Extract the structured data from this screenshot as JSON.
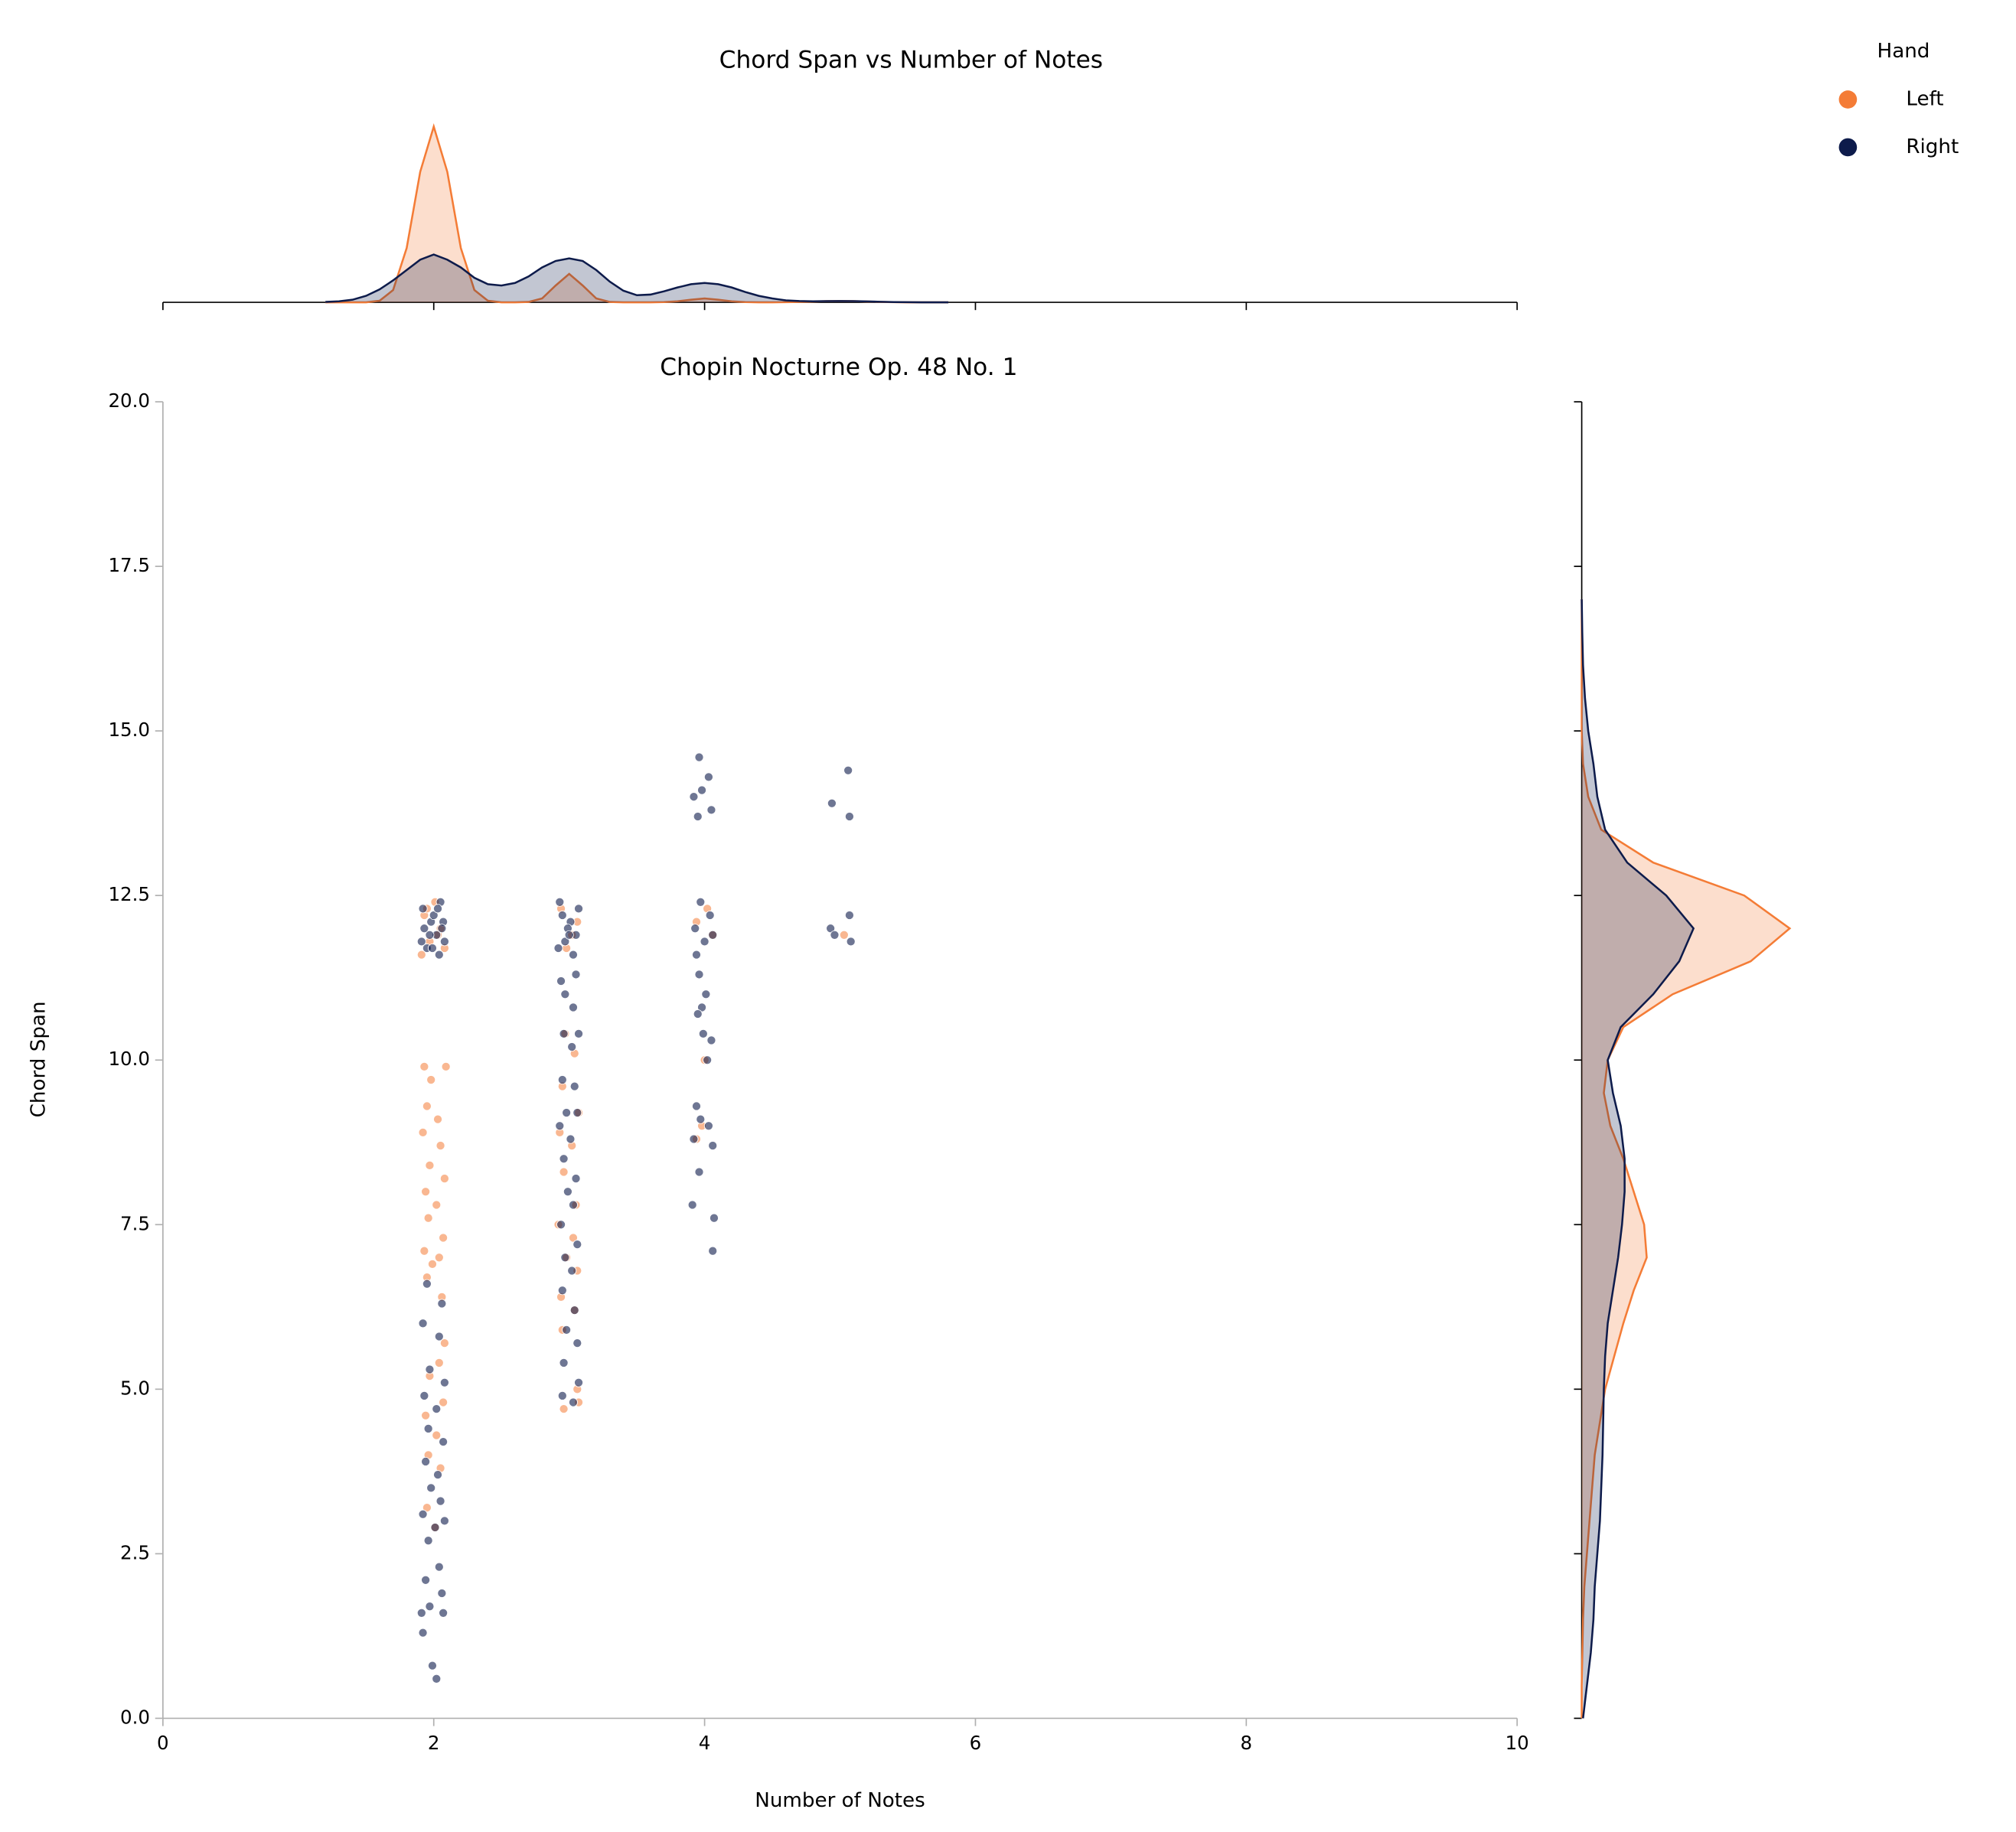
{
  "chart_data": {
    "type": "scatter",
    "suptitle": "Chord Span vs  Number of Notes",
    "title": "Chopin Nocturne Op. 48 No. 1",
    "xlabel": "Number of Notes",
    "ylabel": "Chord Span",
    "legend_title": "Hand",
    "legend": "upper right",
    "xlim": [
      0,
      10
    ],
    "ylim": [
      0,
      20
    ],
    "xticks": [
      0,
      2,
      4,
      6,
      8,
      10
    ],
    "yticks": [
      {
        "value": 0,
        "label": "0.0"
      },
      {
        "value": 2.5,
        "label": "2.5"
      },
      {
        "value": 5,
        "label": "5.0"
      },
      {
        "value": 7.5,
        "label": "7.5"
      },
      {
        "value": 10,
        "label": "10.0"
      },
      {
        "value": 12.5,
        "label": "12.5"
      },
      {
        "value": 15,
        "label": "15.0"
      },
      {
        "value": 17.5,
        "label": "17.5"
      },
      {
        "value": 20,
        "label": "20.0"
      }
    ],
    "series": [
      {
        "name": "Left",
        "color": "#f47c36",
        "x": [
          1.93,
          1.97,
          2.01,
          2.05,
          2.08,
          1.95,
          2.03,
          1.91,
          1.93,
          2.09,
          1.98,
          1.95,
          2.03,
          1.92,
          2.05,
          1.97,
          2.08,
          1.94,
          2.02,
          1.96,
          2.07,
          1.93,
          2.04,
          1.99,
          1.95,
          2.06,
          2.08,
          2.04,
          1.97,
          2.07,
          1.94,
          2.02,
          1.96,
          2.05,
          1.95,
          2.01,
          2.94,
          3.02,
          3.06,
          2.98,
          2.97,
          3.04,
          2.95,
          3.07,
          2.93,
          3.02,
          2.96,
          3.05,
          2.92,
          3.03,
          2.98,
          3.06,
          2.94,
          3.04,
          2.95,
          3.06,
          3.07,
          2.96,
          4.02,
          3.94,
          4.06,
          4.0,
          3.98,
          3.94,
          5.03
        ],
        "values": [
          12.2,
          11.8,
          12.4,
          12.0,
          11.7,
          12.3,
          11.9,
          11.6,
          9.9,
          9.9,
          9.7,
          9.3,
          9.1,
          8.9,
          8.7,
          8.4,
          8.2,
          8.0,
          7.8,
          7.6,
          7.3,
          7.1,
          7.0,
          6.9,
          6.7,
          6.4,
          5.7,
          5.4,
          5.2,
          4.8,
          4.6,
          4.3,
          4.0,
          3.8,
          3.2,
          2.9,
          12.3,
          11.9,
          12.1,
          11.7,
          10.4,
          10.1,
          9.6,
          9.2,
          8.9,
          8.7,
          8.3,
          7.8,
          7.5,
          7.3,
          7.0,
          6.8,
          6.4,
          6.2,
          5.9,
          5.0,
          4.8,
          4.7,
          12.3,
          12.1,
          11.9,
          10.0,
          9.0,
          8.8,
          11.9
        ]
      },
      {
        "name": "Right",
        "color": "#0d1b4b",
        "x": [
          1.92,
          1.95,
          1.98,
          2.02,
          2.05,
          2.08,
          1.93,
          2.0,
          2.04,
          1.97,
          2.07,
          1.91,
          2.03,
          1.99,
          2.06,
          1.95,
          2.06,
          1.92,
          2.04,
          1.97,
          2.08,
          1.93,
          2.02,
          1.96,
          2.07,
          1.94,
          2.03,
          1.98,
          2.05,
          1.92,
          2.08,
          2.01,
          1.96,
          2.04,
          1.94,
          2.06,
          1.97,
          1.91,
          2.07,
          1.92,
          1.99,
          2.02,
          2.93,
          2.97,
          3.01,
          3.05,
          2.95,
          3.03,
          2.99,
          3.07,
          2.92,
          3.0,
          2.94,
          3.05,
          2.97,
          3.03,
          2.96,
          3.07,
          3.02,
          2.95,
          3.04,
          2.98,
          3.06,
          2.93,
          3.01,
          2.96,
          3.05,
          2.99,
          3.03,
          2.94,
          3.06,
          2.97,
          3.02,
          2.95,
          3.04,
          2.98,
          3.06,
          2.96,
          3.07,
          2.95,
          3.03,
          3.96,
          4.03,
          3.98,
          3.92,
          4.05,
          3.95,
          3.97,
          4.04,
          3.93,
          4.0,
          4.06,
          3.94,
          3.96,
          4.01,
          3.98,
          3.95,
          4.05,
          3.99,
          4.02,
          3.94,
          4.03,
          3.97,
          3.92,
          4.06,
          3.96,
          3.91,
          4.07,
          4.06,
          5.06,
          4.94,
          5.07,
          5.07,
          4.93,
          4.96,
          5.08
        ],
        "values": [
          12.3,
          11.7,
          12.1,
          11.9,
          12.4,
          11.8,
          12.0,
          12.2,
          11.6,
          11.9,
          12.1,
          11.8,
          12.3,
          11.7,
          12.0,
          6.6,
          6.3,
          6.0,
          5.8,
          5.3,
          5.1,
          4.9,
          4.7,
          4.4,
          4.2,
          3.9,
          3.7,
          3.5,
          3.3,
          3.1,
          3.0,
          2.9,
          2.7,
          2.3,
          2.1,
          1.9,
          1.7,
          1.6,
          1.6,
          1.3,
          0.8,
          0.6,
          12.4,
          11.8,
          12.1,
          11.9,
          12.2,
          11.6,
          12.0,
          12.3,
          11.7,
          11.9,
          11.2,
          11.3,
          11.0,
          10.8,
          10.4,
          10.4,
          10.2,
          9.7,
          9.6,
          9.2,
          9.2,
          9.0,
          8.8,
          8.5,
          8.2,
          8.0,
          7.8,
          7.5,
          7.2,
          7.0,
          6.8,
          6.5,
          6.2,
          5.9,
          5.7,
          5.4,
          5.1,
          4.9,
          4.8,
          14.6,
          14.3,
          14.1,
          14.0,
          13.8,
          13.7,
          12.4,
          12.2,
          12.0,
          11.8,
          11.9,
          11.6,
          11.3,
          11.0,
          10.8,
          10.7,
          10.3,
          10.4,
          10.0,
          9.3,
          9.0,
          9.1,
          8.8,
          8.7,
          8.3,
          7.8,
          7.6,
          7.1,
          14.4,
          13.9,
          13.7,
          12.2,
          12.0,
          11.9,
          11.8
        ]
      }
    ],
    "marginal_x": {
      "type": "kde",
      "ylim": [
        0,
        1.5
      ],
      "x": [
        1.2,
        1.3,
        1.4,
        1.5,
        1.6,
        1.7,
        1.8,
        1.9,
        2.0,
        2.1,
        2.2,
        2.3,
        2.4,
        2.5,
        2.6,
        2.7,
        2.8,
        2.9,
        3.0,
        3.1,
        3.2,
        3.3,
        3.4,
        3.5,
        3.6,
        3.7,
        3.8,
        3.9,
        4.0,
        4.1,
        4.2,
        4.3,
        4.4,
        4.5,
        4.6,
        4.7,
        4.8,
        4.9,
        5.0,
        5.1,
        5.2,
        5.3,
        5.4,
        5.5,
        5.6,
        5.7,
        5.8
      ],
      "series": [
        {
          "values": [
            0,
            0,
            0,
            0,
            0.012,
            0.095,
            0.42,
            1.01,
            1.36,
            1.01,
            0.42,
            0.095,
            0.012,
            0,
            0,
            0.003,
            0.03,
            0.13,
            0.22,
            0.13,
            0.03,
            0.003,
            0,
            0,
            0,
            0.002,
            0.008,
            0.02,
            0.03,
            0.02,
            0.008,
            0.002,
            0,
            0,
            0.001,
            0.003,
            0.006,
            0.009,
            0.01,
            0.009,
            0.006,
            0.003,
            0.001,
            0,
            0,
            0,
            0
          ]
        },
        {
          "values": [
            0.003,
            0.008,
            0.02,
            0.05,
            0.1,
            0.17,
            0.25,
            0.33,
            0.37,
            0.33,
            0.27,
            0.19,
            0.14,
            0.13,
            0.15,
            0.2,
            0.27,
            0.32,
            0.34,
            0.32,
            0.25,
            0.16,
            0.09,
            0.055,
            0.06,
            0.085,
            0.115,
            0.14,
            0.15,
            0.14,
            0.115,
            0.08,
            0.05,
            0.03,
            0.015,
            0.01,
            0.008,
            0.009,
            0.01,
            0.009,
            0.007,
            0.004,
            0.002,
            0.001,
            0,
            0,
            0
          ]
        }
      ]
    },
    "marginal_y": {
      "type": "kde",
      "xlim": [
        0,
        1.7
      ],
      "y": [
        0,
        0.5,
        1,
        1.5,
        2,
        2.5,
        3,
        3.5,
        4,
        4.5,
        5,
        5.5,
        6,
        6.5,
        7,
        7.5,
        8,
        8.5,
        9,
        9.5,
        10,
        10.5,
        11,
        11.5,
        12,
        12.5,
        13,
        13.5,
        14,
        14.5,
        15,
        15.5,
        16,
        16.5,
        17
      ],
      "series": [
        {
          "values": [
            0,
            0,
            0.005,
            0.01,
            0.02,
            0.04,
            0.06,
            0.08,
            0.1,
            0.14,
            0.18,
            0.25,
            0.32,
            0.4,
            0.5,
            0.48,
            0.4,
            0.32,
            0.22,
            0.17,
            0.2,
            0.32,
            0.7,
            1.3,
            1.6,
            1.25,
            0.55,
            0.15,
            0.05,
            0.01,
            0,
            0,
            0,
            0,
            0
          ]
        },
        {
          "values": [
            0.01,
            0.04,
            0.07,
            0.09,
            0.1,
            0.12,
            0.14,
            0.15,
            0.16,
            0.165,
            0.17,
            0.18,
            0.2,
            0.24,
            0.28,
            0.31,
            0.33,
            0.33,
            0.3,
            0.24,
            0.2,
            0.3,
            0.55,
            0.75,
            0.86,
            0.65,
            0.35,
            0.18,
            0.12,
            0.09,
            0.05,
            0.025,
            0.01,
            0.004,
            0
          ]
        }
      ]
    }
  }
}
